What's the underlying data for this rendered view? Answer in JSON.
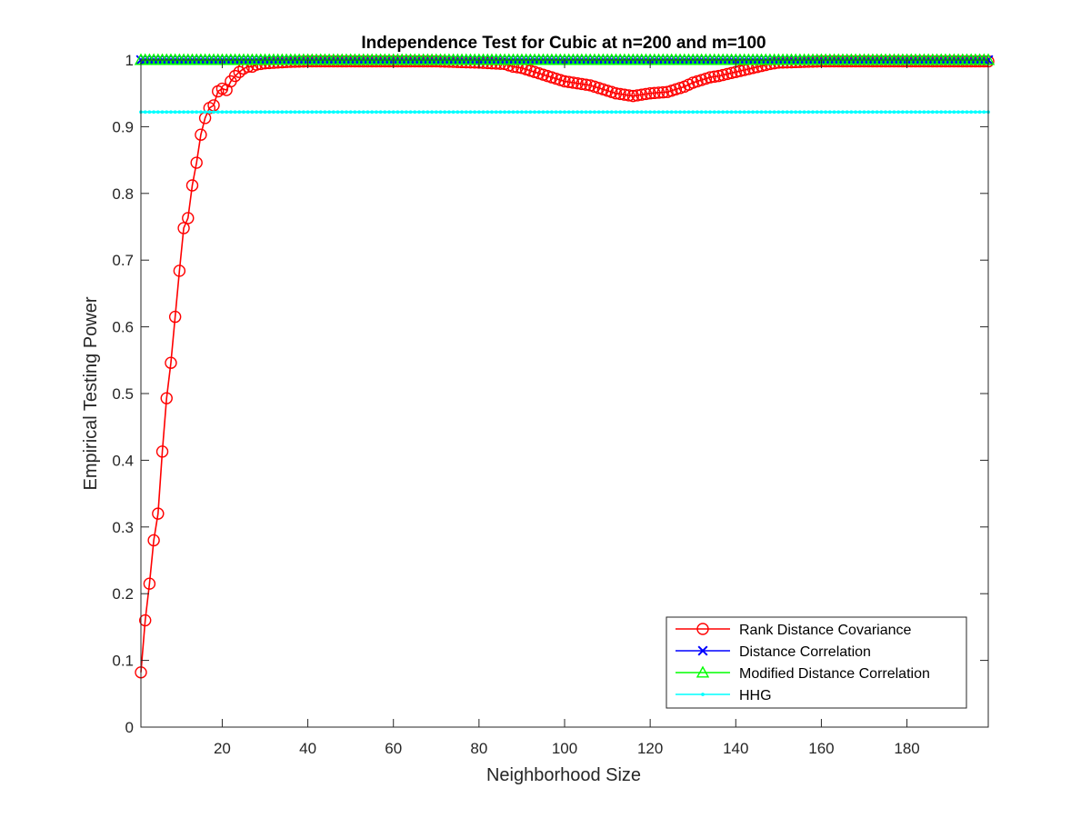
{
  "chart_data": {
    "type": "line",
    "title": "Independence Test for Cubic at n=200 and m=100",
    "xlabel": "Neighborhood Size",
    "ylabel": "Empirical Testing Power",
    "xlim": [
      1,
      199
    ],
    "ylim": [
      0,
      1
    ],
    "xticks": [
      20,
      40,
      60,
      80,
      100,
      120,
      140,
      160,
      180
    ],
    "yticks": [
      0,
      0.1,
      0.2,
      0.3,
      0.4,
      0.5,
      0.6,
      0.7,
      0.8,
      0.9,
      1
    ],
    "grid": false,
    "legend_position": "bottom-right",
    "series": [
      {
        "name": "Rank Distance Covariance",
        "color": "#ff0000",
        "marker": "circle",
        "x": [
          1,
          2,
          3,
          4,
          5,
          6,
          7,
          8,
          9,
          10,
          11,
          12,
          13,
          14,
          15,
          16,
          17,
          18,
          19,
          20,
          21,
          22,
          23,
          24,
          25,
          26,
          27,
          28,
          30,
          35,
          40,
          50,
          60,
          70,
          80,
          86,
          88,
          90,
          92,
          94,
          96,
          98,
          100,
          102,
          104,
          106,
          108,
          110,
          112,
          114,
          116,
          118,
          120,
          122,
          124,
          126,
          128,
          130,
          132,
          134,
          136,
          138,
          140,
          142,
          144,
          146,
          148,
          150,
          155,
          160,
          170,
          180,
          190,
          199
        ],
        "y": [
          0.082,
          0.16,
          0.215,
          0.28,
          0.32,
          0.413,
          0.493,
          0.546,
          0.615,
          0.684,
          0.748,
          0.763,
          0.812,
          0.846,
          0.888,
          0.913,
          0.928,
          0.932,
          0.953,
          0.957,
          0.955,
          0.968,
          0.976,
          0.982,
          0.987,
          0.99,
          0.99,
          0.993,
          0.995,
          0.997,
          0.998,
          0.998,
          0.998,
          0.998,
          0.996,
          0.994,
          0.99,
          0.988,
          0.984,
          0.98,
          0.976,
          0.972,
          0.968,
          0.966,
          0.964,
          0.962,
          0.958,
          0.954,
          0.95,
          0.948,
          0.946,
          0.948,
          0.95,
          0.951,
          0.952,
          0.956,
          0.96,
          0.966,
          0.97,
          0.974,
          0.976,
          0.979,
          0.982,
          0.985,
          0.988,
          0.991,
          0.994,
          0.996,
          0.997,
          0.998,
          0.998,
          0.998,
          0.998,
          0.998
        ]
      },
      {
        "name": "Distance Correlation",
        "color": "#0000ff",
        "marker": "x",
        "x": [
          1,
          199
        ],
        "y": [
          1,
          1
        ]
      },
      {
        "name": "Modified Distance Correlation",
        "color": "#00ff00",
        "marker": "triangle",
        "x": [
          1,
          199
        ],
        "y": [
          1,
          1
        ]
      },
      {
        "name": "HHG",
        "color": "#00ffff",
        "marker": "point",
        "x": [
          1,
          199
        ],
        "y": [
          0.922,
          0.922
        ]
      }
    ]
  }
}
